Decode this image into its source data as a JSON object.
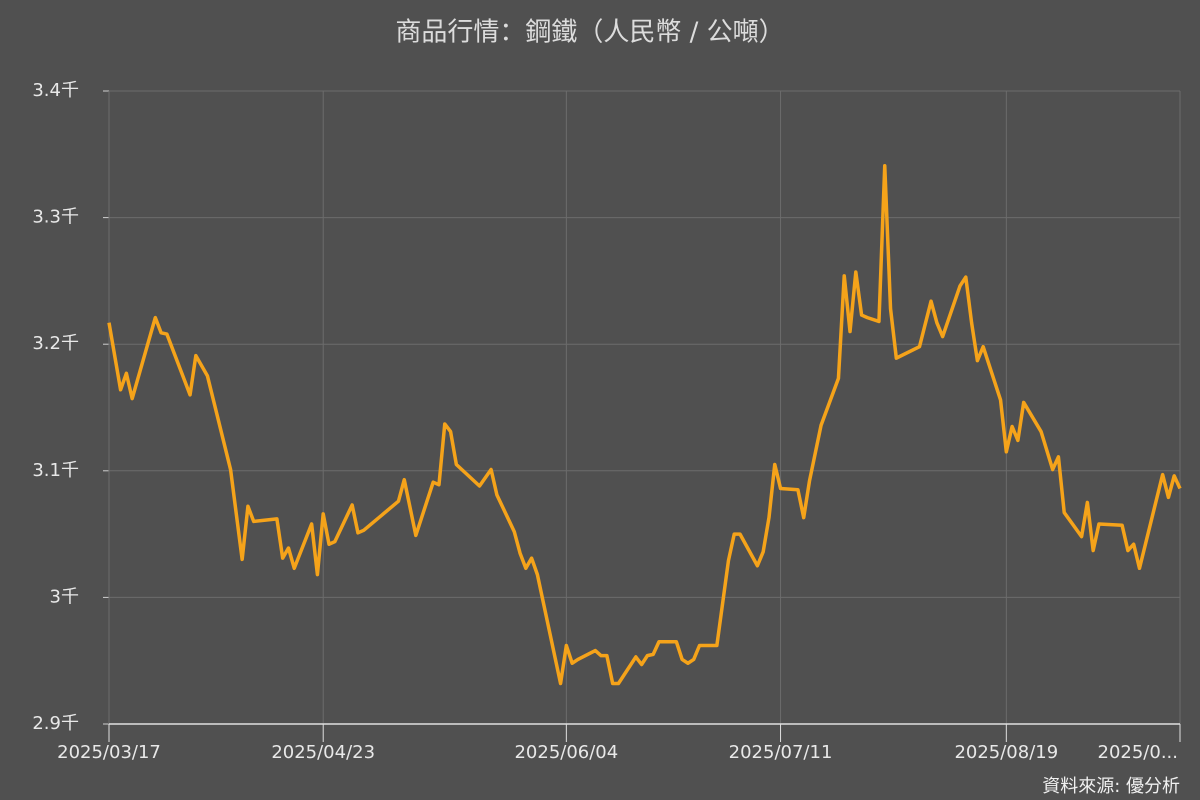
{
  "chart_data": {
    "type": "line",
    "title": "商品行情：鋼鐵（人民幣 / 公噸）",
    "source": "資料來源: 優分析",
    "grid": true,
    "xlim": [
      "2025/03/17",
      "2025/09/18"
    ],
    "xticks": [
      {
        "value": "2025/03/17",
        "label": "2025/03/17"
      },
      {
        "value": "2025/04/23",
        "label": "2025/04/23"
      },
      {
        "value": "2025/06/04",
        "label": "2025/06/04"
      },
      {
        "value": "2025/07/11",
        "label": "2025/07/11"
      },
      {
        "value": "2025/08/19",
        "label": "2025/08/19"
      },
      {
        "value": "2025/09/18",
        "label": "2025/0..."
      }
    ],
    "ylim": [
      2900,
      3400
    ],
    "yticks": [
      {
        "value": 2900,
        "label": "2.9千"
      },
      {
        "value": 3000,
        "label": "3千"
      },
      {
        "value": 3100,
        "label": "3.1千"
      },
      {
        "value": 3200,
        "label": "3.2千"
      },
      {
        "value": 3300,
        "label": "3.3千"
      },
      {
        "value": 3400,
        "label": "3.4千"
      }
    ],
    "x": [
      "2025/03/17",
      "2025/03/19",
      "2025/03/20",
      "2025/03/21",
      "2025/03/25",
      "2025/03/26",
      "2025/03/27",
      "2025/03/31",
      "2025/04/01",
      "2025/04/03",
      "2025/04/07",
      "2025/04/09",
      "2025/04/10",
      "2025/04/11",
      "2025/04/15",
      "2025/04/16",
      "2025/04/17",
      "2025/04/18",
      "2025/04/21",
      "2025/04/22",
      "2025/04/23",
      "2025/04/24",
      "2025/04/25",
      "2025/04/28",
      "2025/04/29",
      "2025/04/30",
      "2025/05/06",
      "2025/05/07",
      "2025/05/09",
      "2025/05/12",
      "2025/05/13",
      "2025/05/14",
      "2025/05/15",
      "2025/05/16",
      "2025/05/20",
      "2025/05/22",
      "2025/05/23",
      "2025/05/26",
      "2025/05/27",
      "2025/05/28",
      "2025/05/29",
      "2025/05/30",
      "2025/06/03",
      "2025/06/04",
      "2025/06/05",
      "2025/06/06",
      "2025/06/09",
      "2025/06/10",
      "2025/06/11",
      "2025/06/12",
      "2025/06/13",
      "2025/06/16",
      "2025/06/17",
      "2025/06/18",
      "2025/06/19",
      "2025/06/20",
      "2025/06/23",
      "2025/06/24",
      "2025/06/25",
      "2025/06/26",
      "2025/06/27",
      "2025/06/30",
      "2025/07/02",
      "2025/07/03",
      "2025/07/04",
      "2025/07/07",
      "2025/07/08",
      "2025/07/09",
      "2025/07/10",
      "2025/07/11",
      "2025/07/14",
      "2025/07/15",
      "2025/07/16",
      "2025/07/18",
      "2025/07/21",
      "2025/07/22",
      "2025/07/23",
      "2025/07/24",
      "2025/07/25",
      "2025/07/26",
      "2025/07/28",
      "2025/07/29",
      "2025/07/30",
      "2025/07/31",
      "2025/08/04",
      "2025/08/06",
      "2025/08/07",
      "2025/08/08",
      "2025/08/11",
      "2025/08/12",
      "2025/08/13",
      "2025/08/14",
      "2025/08/15",
      "2025/08/18",
      "2025/08/19",
      "2025/08/20",
      "2025/08/21",
      "2025/08/22",
      "2025/08/25",
      "2025/08/27",
      "2025/08/28",
      "2025/08/29",
      "2025/09/01",
      "2025/09/02",
      "2025/09/03",
      "2025/09/04",
      "2025/09/08",
      "2025/09/09",
      "2025/09/10",
      "2025/09/11",
      "2025/09/15",
      "2025/09/16",
      "2025/09/17",
      "2025/09/18"
    ],
    "series": [
      {
        "color": "#f5a31a",
        "values": [
          3217,
          3164,
          3177,
          3157,
          3221,
          3209,
          3208,
          3160,
          3191,
          3175,
          3101,
          3030,
          3072,
          3060,
          3062,
          3031,
          3039,
          3023,
          3058,
          3018,
          3066,
          3042,
          3044,
          3073,
          3051,
          3053,
          3076,
          3093,
          3049,
          3091,
          3089,
          3137,
          3131,
          3105,
          3088,
          3101,
          3081,
          3052,
          3035,
          3023,
          3031,
          3018,
          2932,
          2962,
          2948,
          2951,
          2958,
          2954,
          2954,
          2932,
          2932,
          2953,
          2947,
          2954,
          2955,
          2965,
          2965,
          2951,
          2948,
          2951,
          2962,
          2962,
          3029,
          3050,
          3050,
          3025,
          3036,
          3063,
          3105,
          3086,
          3085,
          3063,
          3092,
          3136,
          3173,
          3254,
          3210,
          3257,
          3223,
          3221,
          3218,
          3341,
          3228,
          3189,
          3198,
          3234,
          3217,
          3206,
          3246,
          3253,
          3217,
          3187,
          3198,
          3156,
          3115,
          3135,
          3124,
          3154,
          3131,
          3101,
          3111,
          3067,
          3048,
          3075,
          3037,
          3058,
          3057,
          3037,
          3042,
          3023,
          3097,
          3079,
          3096,
          3086
        ]
      }
    ]
  }
}
